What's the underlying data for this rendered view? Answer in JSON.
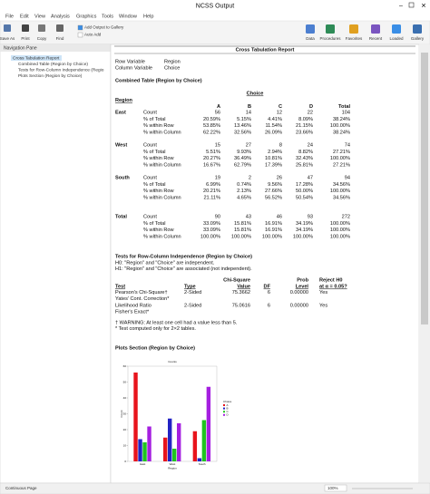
{
  "window": {
    "title": "NCSS Output"
  },
  "menu": [
    "File",
    "Edit",
    "View",
    "Analysis",
    "Graphics",
    "Tools",
    "Window",
    "Help"
  ],
  "toolbar": {
    "left": [
      "Save As",
      "Print",
      "Copy",
      "Find"
    ],
    "gallery": [
      "Add Output to Gallery",
      "Auto Add"
    ],
    "right": [
      "Data",
      "Procedures",
      "Favorites",
      "Recent",
      "Loaded",
      "Gallery"
    ]
  },
  "nav": {
    "title": "Navigation Pane",
    "items": [
      "Cross Tabulation Report",
      "Combined Table (Region by Choice)",
      "Tests for Row-Column Independence (Regio",
      "Plots Section (Region by Choice)"
    ]
  },
  "report": {
    "title": "Cross Tabulation Report",
    "variables": [
      [
        "Row Variable",
        "Region"
      ],
      [
        "Column Variable",
        "Choice"
      ]
    ],
    "combined": {
      "title": "Combined Table (Region by Choice)",
      "column_group": "Choice",
      "row_group": "Region",
      "columns": [
        "A",
        "B",
        "C",
        "D",
        "Total"
      ],
      "stats": [
        "Count",
        "% of Total",
        "% within Row",
        "% within Column"
      ],
      "rows": [
        {
          "label": "East",
          "cells": [
            [
              "56",
              "14",
              "12",
              "22",
              "104"
            ],
            [
              "20.59%",
              "5.15%",
              "4.41%",
              "8.09%",
              "38.24%"
            ],
            [
              "53.85%",
              "13.46%",
              "11.54%",
              "21.15%",
              "100.00%"
            ],
            [
              "62.22%",
              "32.56%",
              "26.09%",
              "23.66%",
              "38.24%"
            ]
          ]
        },
        {
          "label": "West",
          "cells": [
            [
              "15",
              "27",
              "8",
              "24",
              "74"
            ],
            [
              "5.51%",
              "9.93%",
              "2.94%",
              "8.82%",
              "27.21%"
            ],
            [
              "20.27%",
              "36.49%",
              "10.81%",
              "32.43%",
              "100.00%"
            ],
            [
              "16.67%",
              "62.79%",
              "17.39%",
              "25.81%",
              "27.21%"
            ]
          ]
        },
        {
          "label": "South",
          "cells": [
            [
              "19",
              "2",
              "26",
              "47",
              "94"
            ],
            [
              "6.99%",
              "0.74%",
              "9.56%",
              "17.28%",
              "34.56%"
            ],
            [
              "20.21%",
              "2.13%",
              "27.66%",
              "50.00%",
              "100.00%"
            ],
            [
              "21.11%",
              "4.65%",
              "56.52%",
              "50.54%",
              "34.56%"
            ]
          ]
        },
        {
          "label": "Total",
          "cells": [
            [
              "90",
              "43",
              "46",
              "93",
              "272"
            ],
            [
              "33.09%",
              "15.81%",
              "16.91%",
              "34.19%",
              "100.00%"
            ],
            [
              "33.09%",
              "15.81%",
              "16.91%",
              "34.19%",
              "100.00%"
            ],
            [
              "100.00%",
              "100.00%",
              "100.00%",
              "100.00%",
              "100.00%"
            ]
          ]
        }
      ]
    },
    "tests": {
      "title": "Tests for Row-Column Independence (Region by Choice)",
      "hypotheses": [
        "H0: \"Region\" and \"Choice\" are independent.",
        "H1: \"Region\" and \"Choice\" are associated (not independent)."
      ],
      "header_top": [
        "Chi-Square",
        "Prob",
        "Reject H0"
      ],
      "header": [
        "Test",
        "Type",
        "Value",
        "DF",
        "Level",
        "at α = 0.05?"
      ],
      "rows": [
        [
          "Pearson's Chi-Square†",
          "2-Sided",
          "75.3662",
          "6",
          "0.00000",
          "Yes"
        ],
        [
          "Yates' Cont. Correction*"
        ],
        [
          "Likelihood Ratio",
          "2-Sided",
          "75.0616",
          "6",
          "0.00000",
          "Yes"
        ],
        [
          "Fisher's Exact*"
        ]
      ],
      "notes": [
        "† WARNING: At least one cell had a value less than 5.",
        "* Test computed only for 2×2 tables."
      ]
    },
    "plots": {
      "title": "Plots Section (Region by Choice)",
      "chart_data": {
        "type": "bar",
        "title": "Counts",
        "x_label": "Region",
        "y_label": "Count",
        "legend_title": "Choice",
        "categories": [
          "East",
          "West",
          "South"
        ],
        "series": [
          {
            "name": "A",
            "color": "#e8141c",
            "values": [
              56,
              15,
              19
            ]
          },
          {
            "name": "B",
            "color": "#2323c4",
            "values": [
              14,
              27,
              2
            ]
          },
          {
            "name": "C",
            "color": "#1fc41f",
            "values": [
              12,
              8,
              26
            ]
          },
          {
            "name": "D",
            "color": "#a51fe0",
            "values": [
              22,
              24,
              47
            ]
          }
        ],
        "ylim": [
          0,
          60
        ],
        "yticks": [
          0,
          10,
          20,
          30,
          40,
          50,
          60
        ]
      }
    }
  },
  "status": {
    "left": "Continuous Page",
    "zoom": "100%"
  }
}
